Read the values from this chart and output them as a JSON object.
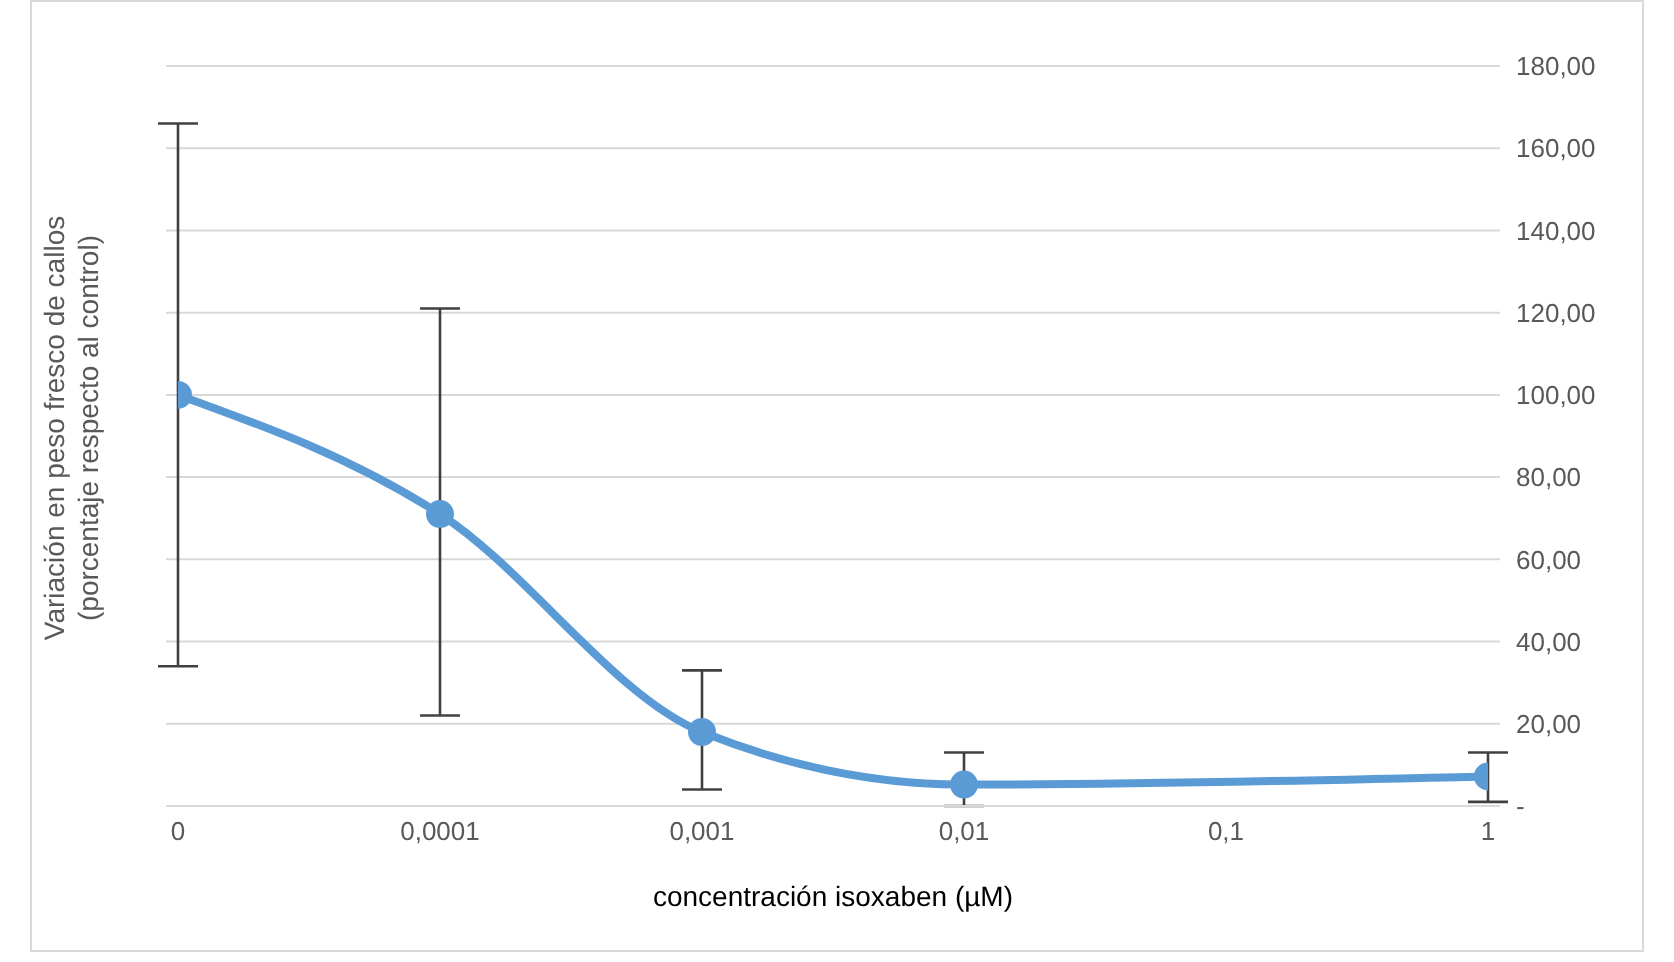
{
  "chart_data": {
    "type": "line",
    "xlabel": "concentración isoxaben (µM)",
    "ylabel": "Variación en peso fresco de callos\n(porcentaje respecto al control)",
    "categories": [
      "0",
      "0,0001",
      "0,001",
      "0,01",
      "0,1",
      "1"
    ],
    "series": [
      {
        "color": "#5b9bd5",
        "values": [
          100,
          71,
          18,
          5.2,
          null,
          7.2
        ],
        "errors": [
          [
            34,
            166
          ],
          [
            22,
            121
          ],
          [
            4,
            33
          ],
          [
            0,
            13
          ],
          null,
          [
            1,
            13
          ]
        ]
      }
    ],
    "ylim": [
      0,
      180
    ],
    "yticks": [
      {
        "value": 0,
        "label": "-"
      },
      {
        "value": 20,
        "label": "20,00"
      },
      {
        "value": 40,
        "label": "40,00"
      },
      {
        "value": 60,
        "label": "60,00"
      },
      {
        "value": 80,
        "label": "80,00"
      },
      {
        "value": 100,
        "label": "100,00"
      },
      {
        "value": 120,
        "label": "120,00"
      },
      {
        "value": 140,
        "label": "140,00"
      },
      {
        "value": 160,
        "label": "160,00"
      },
      {
        "value": 180,
        "label": "180,00"
      }
    ],
    "grid": "y",
    "marker": "circle",
    "line_style": "solid"
  }
}
